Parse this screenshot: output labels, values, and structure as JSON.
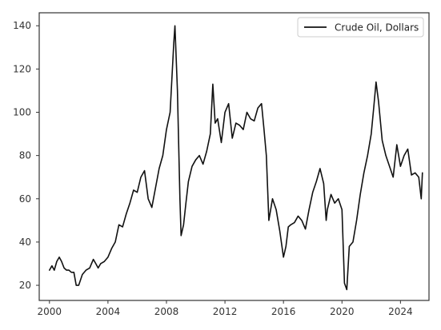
{
  "chart_data": {
    "type": "line",
    "title": "",
    "xlabel": "",
    "ylabel": "",
    "xlim": [
      1999.3,
      2025.95
    ],
    "ylim": [
      13,
      146
    ],
    "x_ticks": [
      2000,
      2004,
      2008,
      2012,
      2016,
      2020,
      2024
    ],
    "x_tick_labels": [
      "2000",
      "2004",
      "2008",
      "2012",
      "2016",
      "2020",
      "2024"
    ],
    "y_ticks": [
      20,
      40,
      60,
      80,
      100,
      120,
      140
    ],
    "y_tick_labels": [
      "20",
      "40",
      "60",
      "80",
      "100",
      "120",
      "140"
    ],
    "grid": false,
    "legend": {
      "position": "top-right",
      "entries": [
        "Crude Oil, Dollars"
      ]
    },
    "series": [
      {
        "name": "Crude Oil, Dollars",
        "color": "#111111",
        "x": [
          2000.0,
          2000.17,
          2000.33,
          2000.5,
          2000.67,
          2000.83,
          2001.0,
          2001.17,
          2001.33,
          2001.5,
          2001.67,
          2001.83,
          2002.0,
          2002.25,
          2002.5,
          2002.75,
          2003.0,
          2003.17,
          2003.33,
          2003.5,
          2003.75,
          2004.0,
          2004.25,
          2004.5,
          2004.75,
          2005.0,
          2005.25,
          2005.5,
          2005.75,
          2006.0,
          2006.25,
          2006.5,
          2006.75,
          2007.0,
          2007.25,
          2007.5,
          2007.75,
          2008.0,
          2008.25,
          2008.5,
          2008.58,
          2008.75,
          2008.92,
          2009.0,
          2009.17,
          2009.33,
          2009.5,
          2009.75,
          2010.0,
          2010.25,
          2010.5,
          2010.75,
          2011.0,
          2011.17,
          2011.33,
          2011.5,
          2011.75,
          2012.0,
          2012.25,
          2012.5,
          2012.75,
          2013.0,
          2013.25,
          2013.5,
          2013.75,
          2014.0,
          2014.25,
          2014.5,
          2014.67,
          2014.83,
          2015.0,
          2015.25,
          2015.5,
          2015.75,
          2016.0,
          2016.17,
          2016.33,
          2016.5,
          2016.75,
          2017.0,
          2017.25,
          2017.5,
          2017.75,
          2018.0,
          2018.25,
          2018.5,
          2018.75,
          2018.92,
          2019.0,
          2019.25,
          2019.5,
          2019.75,
          2020.0,
          2020.17,
          2020.33,
          2020.5,
          2020.75,
          2021.0,
          2021.25,
          2021.5,
          2021.75,
          2022.0,
          2022.17,
          2022.33,
          2022.5,
          2022.75,
          2023.0,
          2023.25,
          2023.5,
          2023.75,
          2024.0,
          2024.25,
          2024.5,
          2024.75,
          2025.0,
          2025.25,
          2025.42,
          2025.5
        ],
        "values": [
          27,
          29,
          27,
          31,
          33,
          31,
          28,
          27,
          27,
          26,
          26,
          20,
          20,
          25,
          27,
          28,
          32,
          30,
          28,
          30,
          31,
          33,
          37,
          40,
          48,
          47,
          53,
          58,
          64,
          63,
          70,
          73,
          60,
          56,
          65,
          74,
          80,
          92,
          100,
          132,
          140,
          110,
          60,
          43,
          48,
          58,
          68,
          75,
          78,
          80,
          76,
          82,
          90,
          113,
          95,
          97,
          86,
          100,
          104,
          88,
          95,
          94,
          92,
          100,
          97,
          96,
          102,
          104,
          92,
          80,
          50,
          60,
          55,
          45,
          33,
          38,
          47,
          48,
          49,
          52,
          50,
          46,
          55,
          63,
          68,
          74,
          67,
          50,
          55,
          62,
          58,
          60,
          55,
          21,
          18,
          38,
          40,
          50,
          62,
          72,
          80,
          90,
          102,
          114,
          105,
          87,
          80,
          75,
          70,
          85,
          75,
          80,
          83,
          71,
          72,
          70,
          60,
          72
        ]
      }
    ]
  }
}
